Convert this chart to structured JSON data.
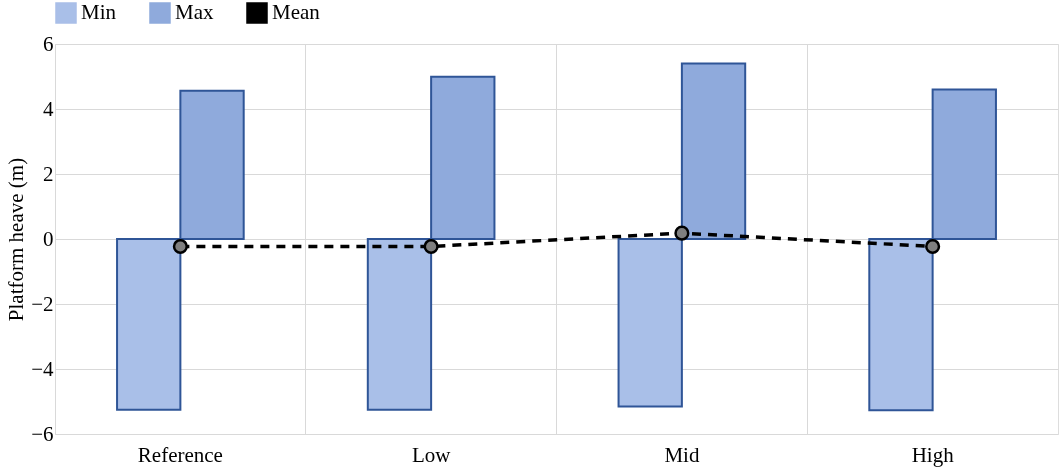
{
  "chart_data": {
    "type": "bar",
    "ylabel": "Platform heave (m)",
    "categories": [
      "Reference",
      "Low",
      "Mid",
      "High"
    ],
    "series": [
      {
        "name": "Min",
        "color": "#a9bfe8",
        "values": [
          -5.25,
          -5.25,
          -5.15,
          -5.27
        ]
      },
      {
        "name": "Max",
        "color": "#8faadc",
        "values": [
          4.56,
          4.99,
          5.4,
          4.6
        ]
      },
      {
        "name": "Mean",
        "type": "line",
        "color": "#000000",
        "line_style": "dashed",
        "marker": "circle",
        "values": [
          -0.23,
          -0.23,
          0.18,
          -0.23
        ]
      }
    ],
    "ylim": [
      -6,
      6
    ],
    "yticks": [
      -6,
      -4,
      -2,
      0,
      2,
      4,
      6
    ],
    "grid": true,
    "legend": "top"
  }
}
